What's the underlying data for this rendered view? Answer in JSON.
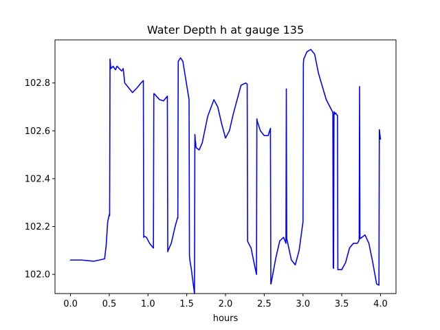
{
  "chart_data": {
    "type": "line",
    "title": "Water Depth h at gauge 135",
    "xlabel": "hours",
    "ylabel": "",
    "xlim": [
      -0.2,
      4.2
    ],
    "ylim": [
      101.92,
      102.98
    ],
    "xticks": [
      0.0,
      0.5,
      1.0,
      1.5,
      2.0,
      2.5,
      3.0,
      3.5,
      4.0
    ],
    "xtick_labels": [
      "0.0",
      "0.5",
      "1.0",
      "1.5",
      "2.0",
      "2.5",
      "3.0",
      "3.5",
      "4.0"
    ],
    "yticks": [
      102.0,
      102.2,
      102.4,
      102.6,
      102.8
    ],
    "ytick_labels": [
      "102.0",
      "102.2",
      "102.4",
      "102.6",
      "102.8"
    ],
    "grid": false,
    "series": [
      {
        "color": "#0000ff",
        "x": [
          0.0,
          0.15,
          0.3,
          0.44,
          0.46,
          0.48,
          0.5,
          0.505,
          0.51,
          0.515,
          0.52,
          0.55,
          0.58,
          0.6,
          0.63,
          0.66,
          0.68,
          0.7,
          0.75,
          0.8,
          0.86,
          0.91,
          0.94,
          0.945,
          0.95,
          0.98,
          1.02,
          1.07,
          1.075,
          1.08,
          1.15,
          1.2,
          1.25,
          1.255,
          1.26,
          1.3,
          1.35,
          1.38,
          1.385,
          1.39,
          1.42,
          1.45,
          1.53,
          1.535,
          1.54,
          1.56,
          1.6,
          1.605,
          1.61,
          1.615,
          1.62,
          1.66,
          1.7,
          1.77,
          1.85,
          1.9,
          1.95,
          2.0,
          2.05,
          2.1,
          2.2,
          2.26,
          2.28,
          2.285,
          2.29,
          2.33,
          2.38,
          2.4,
          2.405,
          2.41,
          2.45,
          2.5,
          2.55,
          2.58,
          2.585,
          2.59,
          2.65,
          2.7,
          2.75,
          2.78,
          2.785,
          2.79,
          2.85,
          2.9,
          2.95,
          3.0,
          3.005,
          3.01,
          3.05,
          3.1,
          3.15,
          3.2,
          3.3,
          3.38,
          3.385,
          3.39,
          3.395,
          3.4,
          3.405,
          3.41,
          3.42,
          3.44,
          3.445,
          3.45,
          3.5,
          3.55,
          3.6,
          3.65,
          3.7,
          3.72,
          3.725,
          3.73,
          3.735,
          3.74,
          3.8,
          3.85,
          3.9,
          3.95,
          3.98,
          3.985,
          3.99,
          4.0
        ],
        "y": [
          102.06,
          102.06,
          102.055,
          102.065,
          102.12,
          102.22,
          102.25,
          102.245,
          102.9,
          102.88,
          102.86,
          102.87,
          102.855,
          102.87,
          102.86,
          102.85,
          102.86,
          102.8,
          102.78,
          102.76,
          102.78,
          102.8,
          102.81,
          102.155,
          102.16,
          102.155,
          102.13,
          102.11,
          102.755,
          102.755,
          102.73,
          102.725,
          102.745,
          102.095,
          102.1,
          102.13,
          102.2,
          102.235,
          102.235,
          102.89,
          102.905,
          102.89,
          102.73,
          102.08,
          102.06,
          102.02,
          101.92,
          102.585,
          102.56,
          102.55,
          102.53,
          102.52,
          102.55,
          102.66,
          102.73,
          102.7,
          102.63,
          102.57,
          102.6,
          102.67,
          102.79,
          102.8,
          102.795,
          102.14,
          102.135,
          102.11,
          102.03,
          102.0,
          102.65,
          102.64,
          102.6,
          102.58,
          102.58,
          102.61,
          101.96,
          101.965,
          102.07,
          102.14,
          102.155,
          102.13,
          102.775,
          102.15,
          102.06,
          102.04,
          102.1,
          102.22,
          102.88,
          102.9,
          102.93,
          102.94,
          102.92,
          102.84,
          102.73,
          102.68,
          102.67,
          102.03,
          102.025,
          102.68,
          102.675,
          102.67,
          102.675,
          102.665,
          102.665,
          102.02,
          102.02,
          102.05,
          102.11,
          102.13,
          102.13,
          102.14,
          102.145,
          102.785,
          102.15,
          102.15,
          102.165,
          102.13,
          102.05,
          101.96,
          101.955,
          102.605,
          102.59,
          102.565
        ]
      }
    ]
  }
}
